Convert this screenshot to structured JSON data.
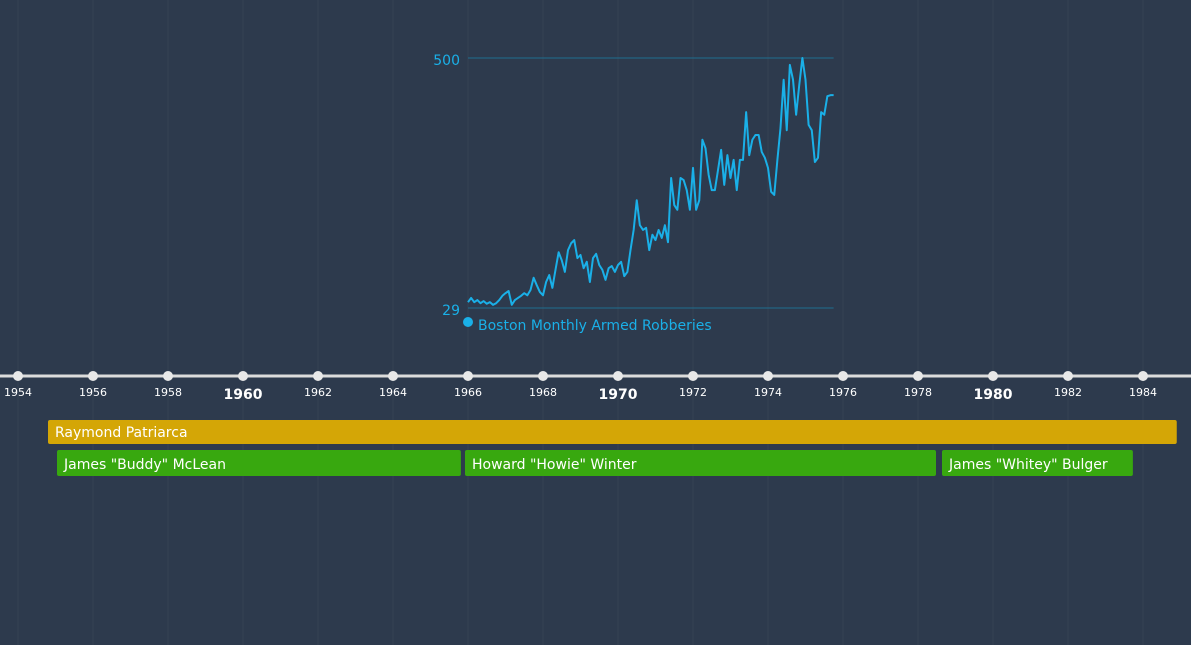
{
  "chart_data": [
    {
      "type": "line",
      "x": [
        1966,
        1966.083,
        1966.167,
        1966.25,
        1966.333,
        1966.417,
        1966.5,
        1966.583,
        1966.667,
        1966.75,
        1966.833,
        1966.917,
        1967,
        1967.083,
        1967.167,
        1967.25,
        1967.333,
        1967.417,
        1967.5,
        1967.583,
        1967.667,
        1967.75,
        1967.833,
        1967.917,
        1968,
        1968.083,
        1968.167,
        1968.25,
        1968.333,
        1968.417,
        1968.5,
        1968.583,
        1968.667,
        1968.75,
        1968.833,
        1968.917,
        1969,
        1969.083,
        1969.167,
        1969.25,
        1969.333,
        1969.417,
        1969.5,
        1969.583,
        1969.667,
        1969.75,
        1969.833,
        1969.917,
        1970,
        1970.083,
        1970.167,
        1970.25,
        1970.333,
        1970.417,
        1970.5,
        1970.583,
        1970.667,
        1970.75,
        1970.833,
        1970.917,
        1971,
        1971.083,
        1971.167,
        1971.25,
        1971.333,
        1971.417,
        1971.5,
        1971.583,
        1971.667,
        1971.75,
        1971.833,
        1971.917,
        1972,
        1972.083,
        1972.167,
        1972.25,
        1972.333,
        1972.417,
        1972.5,
        1972.583,
        1972.667,
        1972.75,
        1972.833,
        1972.917,
        1973,
        1973.083,
        1973.167,
        1973.25,
        1973.333,
        1973.417,
        1973.5,
        1973.583,
        1973.667,
        1973.75,
        1973.833,
        1973.917,
        1974,
        1974.083,
        1974.167,
        1974.25,
        1974.333,
        1974.417,
        1974.5,
        1974.583,
        1974.667,
        1974.75,
        1974.833,
        1974.917,
        1975,
        1975.083,
        1975.167,
        1975.25,
        1975.333,
        1975.417,
        1975.5,
        1975.583,
        1975.667,
        1975.75
      ],
      "series": [
        {
          "name": "Boston Monthly Armed Robberies",
          "color": "#1ab0e8",
          "values": [
            40,
            48,
            40,
            44,
            38,
            42,
            37,
            40,
            35,
            38,
            44,
            52,
            57,
            61,
            35,
            44,
            48,
            52,
            57,
            53,
            63,
            86,
            72,
            59,
            53,
            78,
            91,
            67,
            101,
            134,
            119,
            97,
            138,
            151,
            157,
            123,
            129,
            104,
            116,
            78,
            123,
            131,
            110,
            101,
            82,
            104,
            108,
            97,
            110,
            116,
            89,
            97,
            138,
            176,
            232,
            185,
            176,
            180,
            138,
            167,
            157,
            176,
            161,
            185,
            153,
            274,
            223,
            214,
            274,
            270,
            251,
            214,
            293,
            214,
            232,
            346,
            330,
            280,
            251,
            251,
            289,
            327,
            261,
            317,
            274,
            308,
            251,
            308,
            308,
            398,
            317,
            346,
            355,
            355,
            323,
            312,
            293,
            248,
            242,
            308,
            368,
            459,
            364,
            487,
            459,
            393,
            449,
            500,
            459,
            374,
            364,
            304,
            312,
            398,
            393,
            428,
            430,
            430
          ]
        }
      ],
      "ylim": [
        29,
        500
      ],
      "yticks": [
        29,
        500
      ],
      "grid": true
    },
    {
      "type": "timeline",
      "xlim": [
        1953.52,
        1985.28
      ],
      "xticks": [
        1954,
        1956,
        1958,
        1960,
        1962,
        1964,
        1966,
        1968,
        1970,
        1972,
        1974,
        1976,
        1978,
        1980,
        1982,
        1984
      ],
      "bars": [
        {
          "name": "Raymond Patriarca",
          "start": 1954.8,
          "end": 1984.9,
          "color": "#d4a606",
          "row": 0
        },
        {
          "name": "James \"Buddy\" McLean",
          "start": 1955.04,
          "end": 1965.81,
          "color": "#38a80f",
          "row": 1
        },
        {
          "name": "Howard \"Howie\" Winter",
          "start": 1965.92,
          "end": 1978.48,
          "color": "#38a80f",
          "row": 1
        },
        {
          "name": "James \"Whitey\" Bulger",
          "start": 1978.64,
          "end": 1983.73,
          "color": "#38a80f",
          "row": 1
        }
      ]
    }
  ]
}
